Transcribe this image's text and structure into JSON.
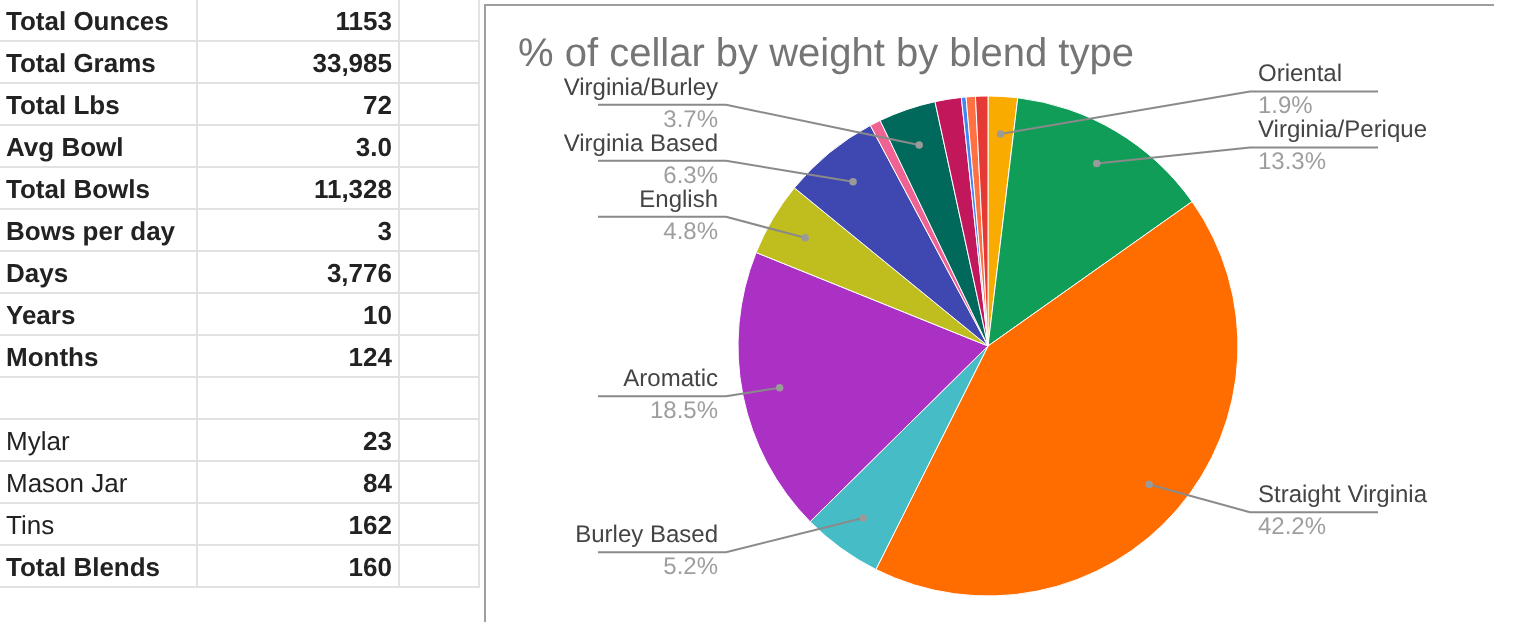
{
  "chart_data": [
    {
      "type": "other",
      "annotations": [
        "Total Ounces",
        "1153",
        "Total Grams",
        "33,985",
        "Total Lbs",
        "72",
        "Avg Bowl",
        "3.0",
        "Total Bowls",
        "11,328",
        "Bows per day",
        "3",
        "Days",
        "3,776",
        "Years",
        "10",
        "Months",
        "124",
        "Mylar",
        "23",
        "Mason Jar",
        "84",
        "Tins",
        "162",
        "Total Blends",
        "160"
      ]
    },
    {
      "type": "pie",
      "title": "% of cellar by weight by blend type",
      "categories": [
        "Oriental",
        "Virginia/Perique",
        "Straight Virginia",
        "Burley Based",
        "Aromatic",
        "English",
        "Virginia Based",
        null,
        "Virginia/Burley",
        null,
        null,
        null,
        null
      ],
      "values": [
        1.9,
        13.3,
        42.2,
        5.2,
        18.5,
        4.8,
        6.3,
        0.7,
        3.7,
        1.7,
        0.3,
        0.6,
        0.8
      ],
      "value_labels": [
        "1.9%",
        "13.3%",
        "42.2%",
        "5.2%",
        "18.5%",
        "4.8%",
        "6.3%",
        null,
        "3.7%",
        null,
        null,
        null,
        null
      ],
      "colors": [
        "#f9ab00",
        "#0f9d58",
        "#ff6d01",
        "#46bdc6",
        "#ab30c4",
        "#c0bd1e",
        "#3f48b0",
        "#f06292",
        "#00695c",
        "#c2185b",
        "#4285f4",
        "#ff7043",
        "#e53935"
      ]
    }
  ]
}
